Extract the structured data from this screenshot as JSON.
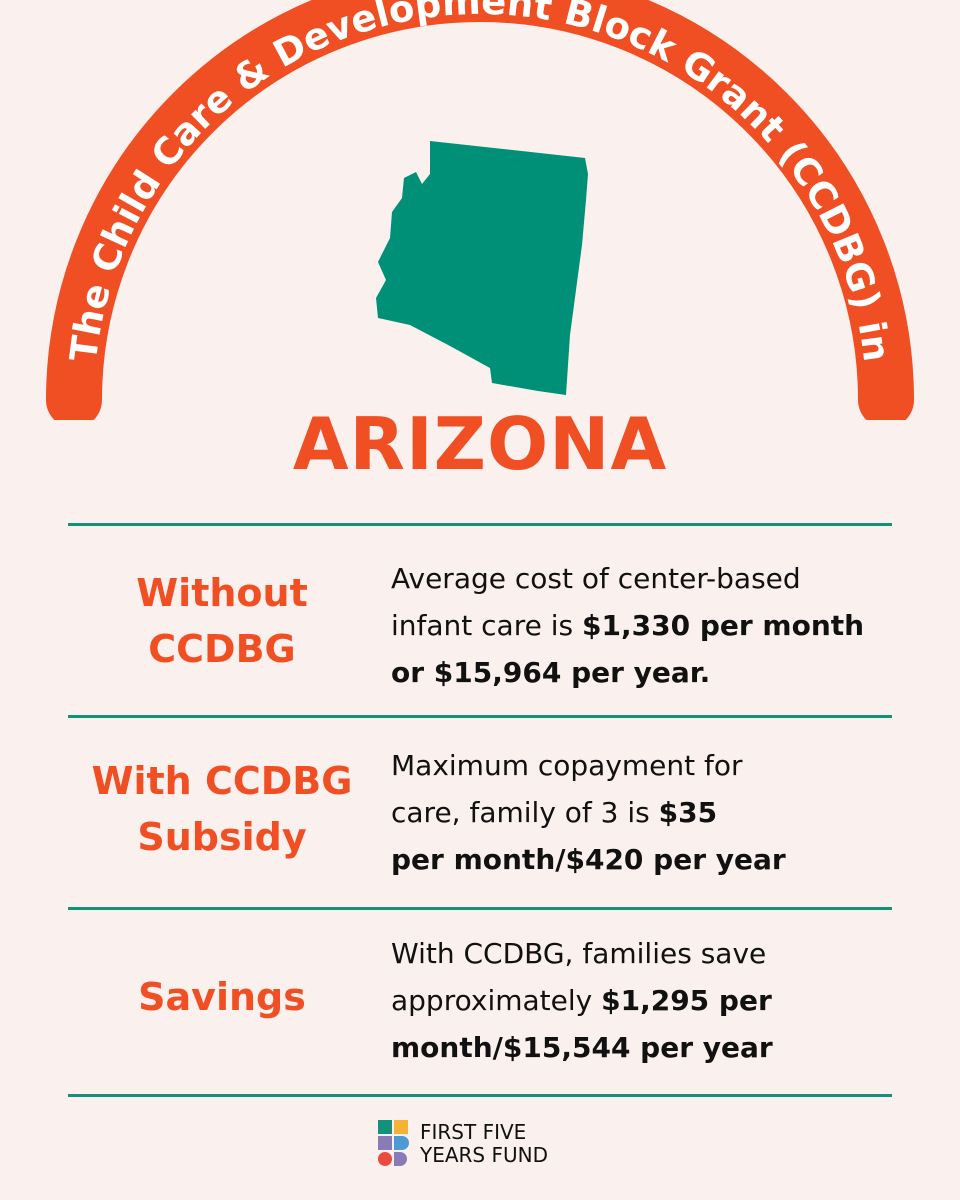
{
  "header": {
    "arc_title": "The Child Care & Development Block Grant (CCDBG) in",
    "state_name": "ARIZONA"
  },
  "rows": [
    {
      "label_lines": [
        "Without",
        "CCDBG"
      ],
      "desc_lines": [
        [
          {
            "t": "Average cost of center-based",
            "b": false
          }
        ],
        [
          {
            "t": "infant care is ",
            "b": false
          },
          {
            "t": "$1,330 per month",
            "b": true
          }
        ],
        [
          {
            "t": "or $15,964 per year.",
            "b": true
          }
        ]
      ]
    },
    {
      "label_lines": [
        "With CCDBG",
        "Subsidy"
      ],
      "desc_lines": [
        [
          {
            "t": "Maximum copayment for",
            "b": false
          }
        ],
        [
          {
            "t": "care, family of 3 is ",
            "b": false
          },
          {
            "t": "$35",
            "b": true
          }
        ],
        [
          {
            "t": "per month/$420 per year",
            "b": true
          }
        ]
      ]
    },
    {
      "label_lines": [
        "Savings"
      ],
      "desc_lines": [
        [
          {
            "t": "With CCDBG, families save",
            "b": false
          }
        ],
        [
          {
            "t": "approximately ",
            "b": false
          },
          {
            "t": "$1,295 per",
            "b": true
          }
        ],
        [
          {
            "t": "month/$15,544 per year",
            "b": true
          }
        ]
      ]
    }
  ],
  "logo": {
    "lines": [
      "FIRST FIVE",
      "YEARS FUND"
    ],
    "colors": {
      "teal": "#14917a",
      "yellow": "#f5b335",
      "red": "#e94b3c",
      "purple": "#8b7ab8",
      "blue": "#4d9bd6"
    }
  },
  "colors": {
    "background": "#faf0ed",
    "accent_orange": "#f04e23",
    "state_green": "#009077",
    "rule_teal": "#14917a"
  },
  "icons": {
    "state_map": "arizona-map-icon",
    "logo_mark": "first-five-years-fund-logo-icon"
  }
}
